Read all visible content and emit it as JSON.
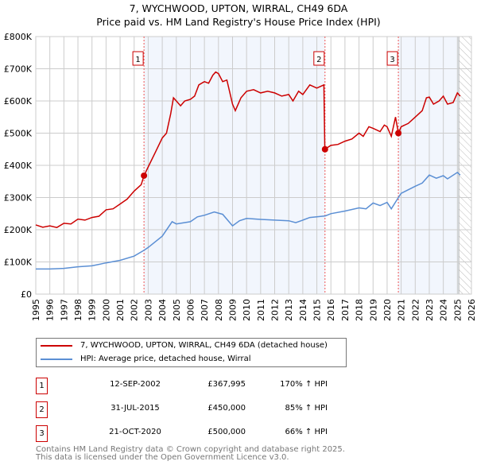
{
  "chart_data": {
    "type": "line",
    "title": "7, WYCHWOOD, UPTON, WIRRAL, CH49 6DA",
    "subtitle": "Price paid vs. HM Land Registry's House Price Index (HPI)",
    "xlim": [
      1995,
      2026
    ],
    "ylim": [
      0,
      800000
    ],
    "x_ticks": [
      "1995",
      "1996",
      "1997",
      "1998",
      "1999",
      "2000",
      "2001",
      "2002",
      "2003",
      "2004",
      "2005",
      "2006",
      "2007",
      "2008",
      "2009",
      "2010",
      "2011",
      "2012",
      "2013",
      "2014",
      "2015",
      "2016",
      "2017",
      "2018",
      "2019",
      "2020",
      "2021",
      "2022",
      "2023",
      "2024",
      "2025",
      "2026"
    ],
    "y_ticks": [
      {
        "v": 0,
        "label": "£0"
      },
      {
        "v": 100000,
        "label": "£100K"
      },
      {
        "v": 200000,
        "label": "£200K"
      },
      {
        "v": 300000,
        "label": "£300K"
      },
      {
        "v": 400000,
        "label": "£400K"
      },
      {
        "v": 500000,
        "label": "£500K"
      },
      {
        "v": 600000,
        "label": "£600K"
      },
      {
        "v": 700000,
        "label": "£700K"
      },
      {
        "v": 800000,
        "label": "£800K"
      }
    ],
    "grid": true,
    "series": [
      {
        "name": "7, WYCHWOOD, UPTON, WIRRAL, CH49 6DA (detached house)",
        "color": "#cc0000",
        "x": [
          1995,
          1995.5,
          1996,
          1996.5,
          1997,
          1997.5,
          1998,
          1998.5,
          1999,
          1999.5,
          2000,
          2000.5,
          2001,
          2001.5,
          2002,
          2002.5,
          2002.7,
          2003,
          2003.5,
          2004,
          2004.3,
          2004.6,
          2004.8,
          2005,
          2005.3,
          2005.6,
          2006,
          2006.3,
          2006.6,
          2007,
          2007.3,
          2007.6,
          2007.8,
          2008,
          2008.3,
          2008.6,
          2009,
          2009.2,
          2009.6,
          2010,
          2010.5,
          2011,
          2011.5,
          2012,
          2012.5,
          2013,
          2013.3,
          2013.7,
          2014,
          2014.5,
          2015,
          2015.5,
          2015.57,
          2016,
          2016.5,
          2017,
          2017.5,
          2018,
          2018.3,
          2018.7,
          2019,
          2019.5,
          2019.8,
          2020,
          2020.3,
          2020.6,
          2020.8,
          2021,
          2021.5,
          2022,
          2022.5,
          2022.8,
          2023,
          2023.3,
          2023.7,
          2024,
          2024.3,
          2024.7,
          2025,
          2025.2
        ],
        "y": [
          215000,
          208000,
          212000,
          207000,
          220000,
          218000,
          233000,
          230000,
          238000,
          242000,
          262000,
          265000,
          280000,
          295000,
          320000,
          340000,
          368000,
          395000,
          440000,
          485000,
          500000,
          560000,
          610000,
          600000,
          585000,
          600000,
          605000,
          615000,
          650000,
          660000,
          655000,
          680000,
          690000,
          685000,
          660000,
          665000,
          590000,
          570000,
          610000,
          630000,
          635000,
          625000,
          630000,
          625000,
          615000,
          620000,
          600000,
          630000,
          620000,
          650000,
          640000,
          650000,
          450000,
          462000,
          465000,
          475000,
          482000,
          500000,
          490000,
          520000,
          515000,
          505000,
          525000,
          520000,
          490000,
          550000,
          500000,
          520000,
          530000,
          550000,
          570000,
          610000,
          612000,
          590000,
          600000,
          615000,
          590000,
          595000,
          625000,
          615000
        ]
      },
      {
        "name": "HPI: Average price, detached house, Wirral",
        "color": "#5b8fd4",
        "x": [
          1995,
          1996,
          1997,
          1998,
          1999,
          2000,
          2001,
          2002,
          2002.7,
          2003,
          2004,
          2004.7,
          2005,
          2006,
          2006.5,
          2007,
          2007.7,
          2008.3,
          2009,
          2009.5,
          2010,
          2011,
          2012,
          2013,
          2013.5,
          2014,
          2014.5,
          2015,
          2015.6,
          2016,
          2017,
          2018,
          2018.5,
          2019,
          2019.5,
          2020,
          2020.3,
          2020.8,
          2021,
          2022,
          2022.5,
          2023,
          2023.5,
          2024,
          2024.3,
          2025,
          2025.2
        ],
        "y": [
          78000,
          78000,
          80000,
          85000,
          88000,
          97000,
          105000,
          118000,
          136000,
          145000,
          180000,
          225000,
          218000,
          225000,
          240000,
          245000,
          255000,
          248000,
          212000,
          228000,
          235000,
          232000,
          230000,
          228000,
          222000,
          230000,
          238000,
          240000,
          243000,
          250000,
          258000,
          268000,
          265000,
          283000,
          275000,
          285000,
          265000,
          300000,
          313000,
          335000,
          345000,
          370000,
          360000,
          368000,
          358000,
          378000,
          370000
        ]
      }
    ],
    "sales": [
      {
        "num": "1",
        "x": 2002.7,
        "y": 367995,
        "date": "12-SEP-2002",
        "price": "£367,995",
        "hpi": "170% ↑ HPI"
      },
      {
        "num": "2",
        "x": 2015.58,
        "y": 450000,
        "date": "31-JUL-2015",
        "price": "£450,000",
        "hpi": "85% ↑ HPI"
      },
      {
        "num": "3",
        "x": 2020.8,
        "y": 500000,
        "date": "21-OCT-2020",
        "price": "£500,000",
        "hpi": "66% ↑ HPI"
      }
    ],
    "forecast_start": 2025.1,
    "legend_placement": "bottom"
  },
  "footer": {
    "line1": "Contains HM Land Registry data © Crown copyright and database right 2025.",
    "line2": "This data is licensed under the Open Government Licence v3.0."
  }
}
